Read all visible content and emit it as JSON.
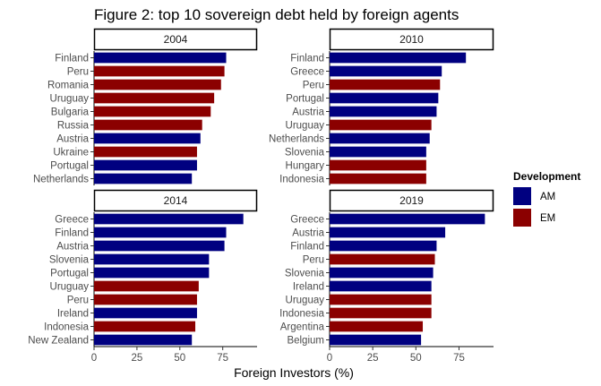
{
  "chart_data": {
    "type": "bar",
    "orientation": "horizontal",
    "title": "Figure 2: top 10 sovereign debt held by foreign agents",
    "xlabel": "Foreign Investors (%)",
    "xlim": [
      0,
      95
    ],
    "xticks": [
      0,
      25,
      50,
      75
    ],
    "legend": {
      "title": "Development",
      "position": "right",
      "entries": [
        {
          "name": "AM",
          "color": "#000080"
        },
        {
          "name": "EM",
          "color": "#8B0000"
        }
      ]
    },
    "panels": [
      {
        "label": "2004",
        "bars": [
          {
            "country": "Finland",
            "value": 77,
            "group": "AM"
          },
          {
            "country": "Peru",
            "value": 76,
            "group": "EM"
          },
          {
            "country": "Romania",
            "value": 74,
            "group": "EM"
          },
          {
            "country": "Uruguay",
            "value": 70,
            "group": "EM"
          },
          {
            "country": "Bulgaria",
            "value": 68,
            "group": "EM"
          },
          {
            "country": "Russia",
            "value": 63,
            "group": "EM"
          },
          {
            "country": "Austria",
            "value": 62,
            "group": "AM"
          },
          {
            "country": "Ukraine",
            "value": 60,
            "group": "EM"
          },
          {
            "country": "Portugal",
            "value": 60,
            "group": "AM"
          },
          {
            "country": "Netherlands",
            "value": 57,
            "group": "AM"
          }
        ]
      },
      {
        "label": "2010",
        "bars": [
          {
            "country": "Finland",
            "value": 79,
            "group": "AM"
          },
          {
            "country": "Greece",
            "value": 65,
            "group": "AM"
          },
          {
            "country": "Peru",
            "value": 64,
            "group": "EM"
          },
          {
            "country": "Portugal",
            "value": 63,
            "group": "AM"
          },
          {
            "country": "Austria",
            "value": 62,
            "group": "AM"
          },
          {
            "country": "Uruguay",
            "value": 59,
            "group": "EM"
          },
          {
            "country": "Netherlands",
            "value": 58,
            "group": "AM"
          },
          {
            "country": "Slovenia",
            "value": 56,
            "group": "AM"
          },
          {
            "country": "Hungary",
            "value": 56,
            "group": "EM"
          },
          {
            "country": "Indonesia",
            "value": 56,
            "group": "EM"
          }
        ]
      },
      {
        "label": "2014",
        "bars": [
          {
            "country": "Greece",
            "value": 87,
            "group": "AM"
          },
          {
            "country": "Finland",
            "value": 77,
            "group": "AM"
          },
          {
            "country": "Austria",
            "value": 76,
            "group": "AM"
          },
          {
            "country": "Slovenia",
            "value": 67,
            "group": "AM"
          },
          {
            "country": "Portugal",
            "value": 67,
            "group": "AM"
          },
          {
            "country": "Uruguay",
            "value": 61,
            "group": "EM"
          },
          {
            "country": "Peru",
            "value": 60,
            "group": "EM"
          },
          {
            "country": "Ireland",
            "value": 60,
            "group": "AM"
          },
          {
            "country": "Indonesia",
            "value": 59,
            "group": "EM"
          },
          {
            "country": "New Zealand",
            "value": 57,
            "group": "AM"
          }
        ]
      },
      {
        "label": "2019",
        "bars": [
          {
            "country": "Greece",
            "value": 90,
            "group": "AM"
          },
          {
            "country": "Austria",
            "value": 67,
            "group": "AM"
          },
          {
            "country": "Finland",
            "value": 62,
            "group": "AM"
          },
          {
            "country": "Peru",
            "value": 61,
            "group": "EM"
          },
          {
            "country": "Slovenia",
            "value": 60,
            "group": "AM"
          },
          {
            "country": "Ireland",
            "value": 59,
            "group": "AM"
          },
          {
            "country": "Uruguay",
            "value": 59,
            "group": "EM"
          },
          {
            "country": "Indonesia",
            "value": 59,
            "group": "EM"
          },
          {
            "country": "Argentina",
            "value": 54,
            "group": "EM"
          },
          {
            "country": "Belgium",
            "value": 53,
            "group": "AM"
          }
        ]
      }
    ]
  }
}
